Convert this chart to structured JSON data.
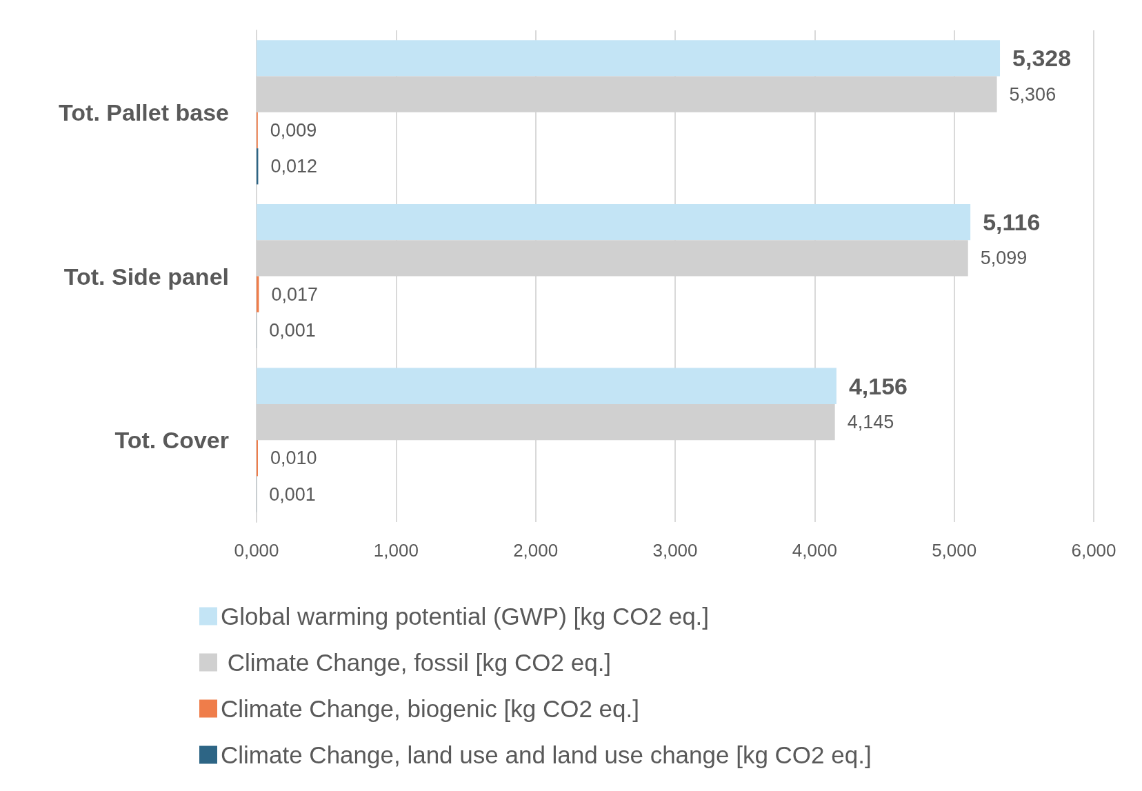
{
  "chart_data": {
    "type": "bar",
    "orientation": "horizontal",
    "categories": [
      "Tot. Pallet base",
      "Tot. Side panel",
      "Tot. Cover"
    ],
    "series": [
      {
        "name": "Global warming potential (GWP) [kg CO2 eq.]",
        "color": "#c3e4f5",
        "values": [
          5.328,
          5.116,
          4.156
        ],
        "value_labels": [
          "5,328",
          "5,116",
          "4,156"
        ]
      },
      {
        "name": " Climate Change, fossil [kg CO2 eq.]",
        "color": "#d0d0d0",
        "values": [
          5.306,
          5.099,
          4.145
        ],
        "value_labels": [
          "5,306",
          "5,099",
          "4,145"
        ]
      },
      {
        "name": "Climate Change, biogenic [kg CO2 eq.]",
        "color": "#ef7d4a",
        "values": [
          0.009,
          0.017,
          0.01
        ],
        "value_labels": [
          "0,009",
          "0,017",
          "0,010"
        ]
      },
      {
        "name": "Climate Change, land use and land use change [kg CO2 eq.]",
        "color": "#2d6585",
        "values": [
          0.012,
          0.001,
          0.001
        ],
        "value_labels": [
          "0,012",
          "0,001",
          "0,001"
        ]
      }
    ],
    "xlim": [
      0,
      6
    ],
    "xticks": [
      {
        "value": 0,
        "label": "0,000"
      },
      {
        "value": 1,
        "label": "1,000"
      },
      {
        "value": 2,
        "label": "2,000"
      },
      {
        "value": 3,
        "label": "3,000"
      },
      {
        "value": 4,
        "label": "4,000"
      },
      {
        "value": 5,
        "label": "5,000"
      },
      {
        "value": 6,
        "label": "6,000"
      }
    ],
    "grid": "x",
    "legend": "bottom"
  }
}
